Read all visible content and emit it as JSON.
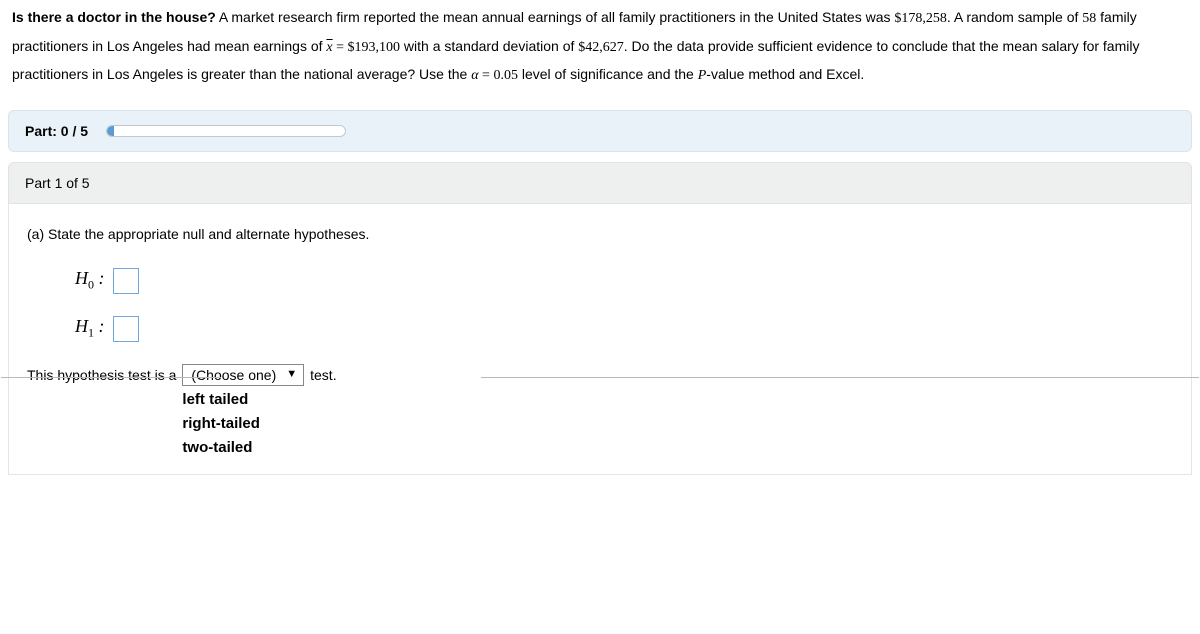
{
  "problem": {
    "title_bold": "Is there a doctor in the house?",
    "s1a": " A market research firm reported the mean annual earnings of all family practitioners in the United States was ",
    "val_national": "$178,258",
    "s1b": ". A random sample of ",
    "val_n": "58",
    "s1c": " family practitioners in Los Angeles had mean earnings of ",
    "xbar": "x",
    "eq": " = ",
    "val_xbar": "$193,100",
    "s1d": " with a standard deviation of ",
    "val_sd": "$42,627",
    "s1e": ". Do the data provide sufficient evidence to conclude that the mean salary for family practitioners in Los Angeles is greater than the national average? Use the ",
    "alpha_sym": "α",
    "alpha_eq": " = ",
    "val_alpha": "0.05",
    "s1f": " level of significance and the ",
    "pval": "P",
    "s1g": "-value method and Excel."
  },
  "progress": {
    "label": "Part: 0 / 5",
    "percent": 3
  },
  "part": {
    "header": "Part 1 of 5",
    "question": "(a) State the appropriate null and alternate hypotheses.",
    "h0_label": "H",
    "h0_sub": "0",
    "h1_label": "H",
    "h1_sub": "1",
    "colon": " :",
    "tail_pre": "This hypothesis test is a ",
    "dropdown_placeholder": "(Choose one)",
    "tail_post": " test.",
    "options": [
      "left tailed",
      "right-tailed",
      "two-tailed"
    ]
  }
}
